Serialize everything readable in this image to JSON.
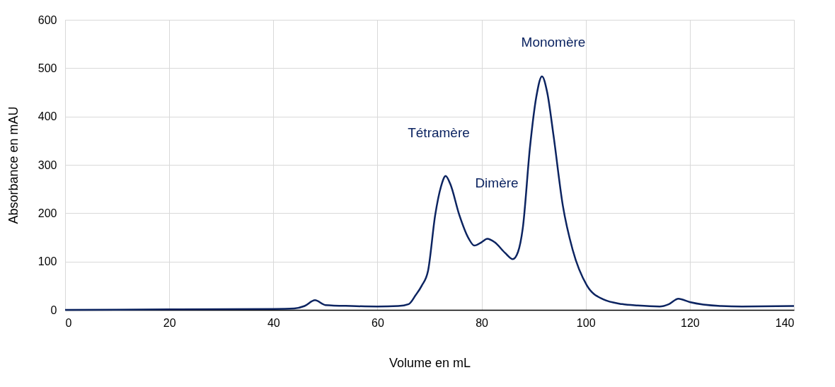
{
  "chart_data": {
    "type": "line",
    "xlabel": "Volume en mL",
    "ylabel": "Absorbance en mAU",
    "x": [
      0,
      20,
      40,
      44,
      46,
      48,
      50,
      55,
      60,
      64,
      66,
      67.3,
      68.5,
      69.7,
      71.1,
      72.2,
      73.1,
      74,
      75.7,
      77.5,
      78.6,
      80,
      81.1,
      82.5,
      84.5,
      86,
      87,
      87.9,
      89.3,
      90.5,
      91.6,
      92.6,
      93.8,
      95.6,
      97.5,
      100.2,
      103.3,
      107,
      110,
      114.2,
      116,
      117.8,
      120,
      126,
      130,
      140
    ],
    "series": [
      {
        "color": "#0c2461",
        "values": [
          0,
          1,
          2,
          3,
          8,
          20,
          10,
          8,
          7,
          8,
          12,
          30,
          50,
          80,
          197,
          255,
          277,
          260,
          197,
          148,
          133,
          140,
          147,
          140,
          118,
          105,
          120,
          168,
          337,
          440,
          483,
          450,
          362,
          216,
          124,
          51,
          22,
          12,
          9,
          7,
          12,
          23,
          16,
          8,
          7,
          8
        ]
      }
    ],
    "xlim": [
      0,
      140
    ],
    "xticks": [
      0,
      20,
      40,
      60,
      80,
      100,
      120,
      140
    ],
    "ylim": [
      0,
      600
    ],
    "yticks": [
      0,
      100,
      200,
      300,
      400,
      500,
      600
    ],
    "grid": true,
    "marker": "none",
    "line_style": "solid",
    "annotations": [
      "Tétramère",
      "Dimère",
      "Monomère"
    ]
  }
}
